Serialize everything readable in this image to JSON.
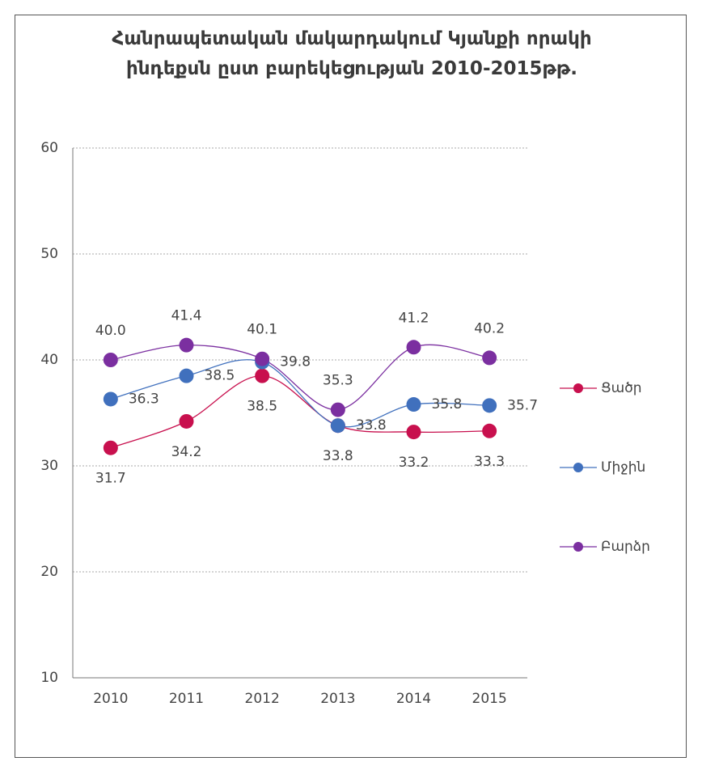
{
  "chart_data": {
    "type": "line",
    "title": "Հանրապետական մակարդակում Կյանքի որակի ինդեքսն ըստ բարեկեցության 2010-2015թթ.",
    "categories": [
      "2010",
      "2011",
      "2012",
      "2013",
      "2014",
      "2015"
    ],
    "series": [
      {
        "name": "Ցածր",
        "color": "#c8104e",
        "values": [
          31.7,
          34.2,
          38.5,
          33.8,
          33.2,
          33.3
        ],
        "value_labels": [
          "31.7",
          "34.2",
          "38.5",
          "33.8",
          "33.2",
          "33.3"
        ]
      },
      {
        "name": "Միջին",
        "color": "#4070bd",
        "values": [
          36.3,
          38.5,
          39.8,
          33.8,
          35.8,
          35.7
        ],
        "value_labels": [
          "36.3",
          "38.5",
          "39.8",
          "33.8",
          "35.8",
          "35.7"
        ]
      },
      {
        "name": "Բարձր",
        "color": "#7b2fa0",
        "values": [
          40.0,
          41.4,
          40.1,
          35.3,
          41.2,
          40.2
        ],
        "value_labels": [
          "40.0",
          "41.4",
          "40.1",
          "35.3",
          "41.2",
          "40.2"
        ]
      }
    ],
    "ylim": [
      10,
      60
    ],
    "yticks": [
      10,
      20,
      30,
      40,
      50,
      60
    ],
    "grid": true,
    "legend": "right"
  }
}
